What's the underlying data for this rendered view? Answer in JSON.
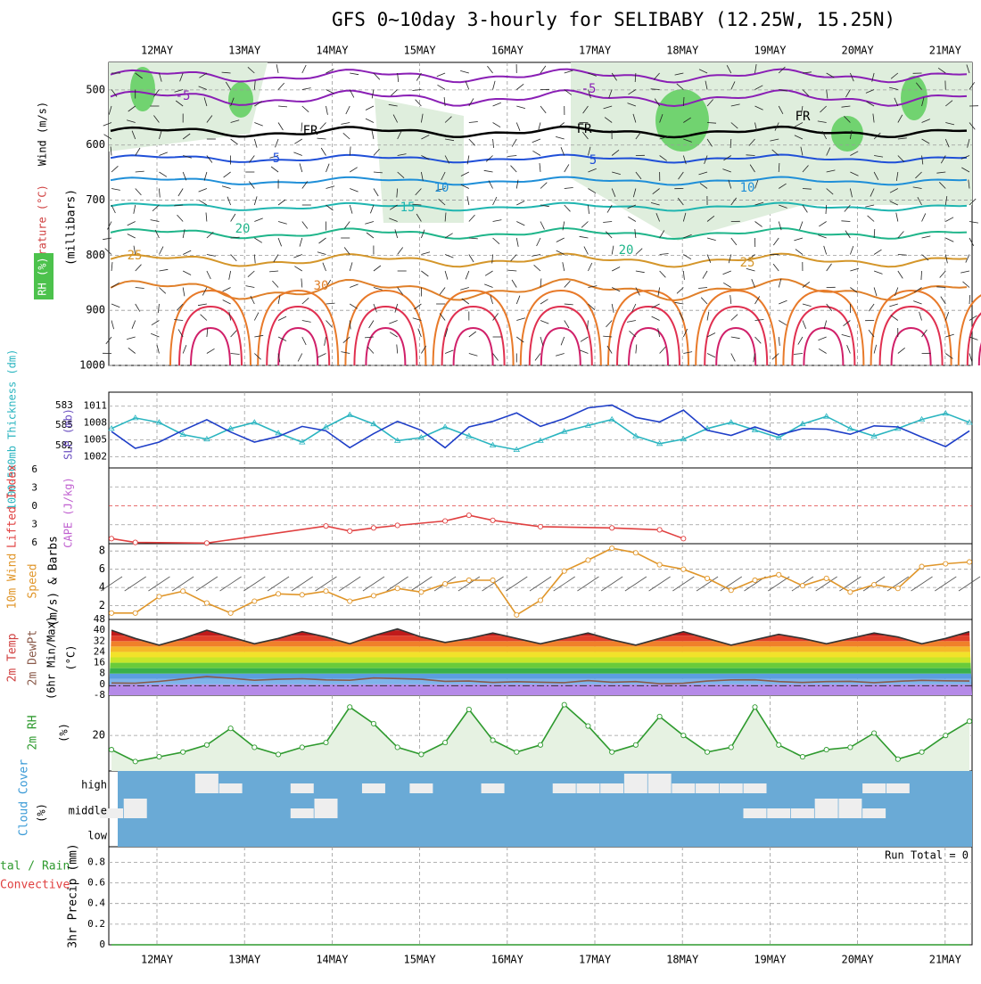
{
  "title": "GFS 0~10day 3-hourly for SELIBABY (12.25W, 15.25N)",
  "dates": [
    "12MAY",
    "13MAY",
    "14MAY",
    "15MAY",
    "16MAY",
    "17MAY",
    "18MAY",
    "19MAY",
    "20MAY",
    "21MAY"
  ],
  "colors": {
    "grid": "#9a9a9a",
    "thickness": "#2bb5c0",
    "slp": "#1f3fc8",
    "li": "#e04040",
    "wind": "#e0962a",
    "rh": "#2e9a2e",
    "cloud_bg": "#6aaad6",
    "cloud_fill": "#eeeeee"
  },
  "labels": {
    "wind": "Wind (m/s)",
    "temperature": "Temperature (°C)",
    "rh_pct": "RH (%)",
    "millibars": "(millibars)",
    "thickness": "1000-500mb Thickness (dm)",
    "slp": "SLP (mb)",
    "li": "Lifted Index",
    "cape": "CAPE (J/kg)",
    "wind10": "10m Wind",
    "speed": "Speed",
    "barbs": "(m/s) & Barbs",
    "temp2m": "2m Temp",
    "dewpt": "2m DewPt",
    "minmax": "(6hr Min/Max)",
    "degc": "(°C)",
    "rh2m": "2m RH",
    "pct": "(%)",
    "cloud": "Cloud Cover",
    "cloud_pct": "(%)",
    "precip_total": "tal / Rain",
    "precip_conv": "Convective",
    "precip_unit": "3hr Precip (mm)",
    "run_total": "Run Total = 0",
    "fr": "FR"
  },
  "chart_data": [
    {
      "type": "line",
      "panel": "upper-air",
      "ylabel": "Wind (m/s)",
      "y_ticks": [
        "500",
        "600",
        "700",
        "800",
        "900",
        "1000"
      ],
      "ylim": [
        1000,
        450
      ],
      "x": [
        "12MAY",
        "13MAY",
        "14MAY",
        "15MAY",
        "16MAY",
        "17MAY",
        "18MAY",
        "19MAY",
        "20MAY",
        "21MAY"
      ],
      "contour_labels": [
        "-5",
        "-5",
        "FR",
        "FR",
        "FR",
        "5",
        "5",
        "10",
        "10",
        "15",
        "20",
        "20",
        "25",
        "25",
        "30",
        "30",
        "30",
        "30"
      ],
      "series": [
        {
          "name": "-5",
          "values": [
            -5,
            -5,
            -5,
            -5,
            -5,
            -5,
            -5,
            -5,
            -5,
            -5
          ]
        },
        {
          "name": "FR",
          "values": [
            0,
            0,
            0,
            0,
            0,
            0,
            0,
            0,
            0,
            0
          ]
        },
        {
          "name": "5",
          "values": [
            5,
            5,
            5,
            5,
            5,
            5,
            5,
            5,
            5,
            5
          ]
        },
        {
          "name": "10",
          "values": [
            10,
            10,
            10,
            10,
            10,
            10,
            10,
            10,
            10,
            10
          ]
        },
        {
          "name": "20",
          "values": [
            20,
            20,
            20,
            20,
            20,
            20,
            20,
            20,
            20,
            20
          ]
        },
        {
          "name": "25",
          "values": [
            25,
            25,
            25,
            25,
            25,
            25,
            25,
            25,
            25,
            25
          ]
        },
        {
          "name": "30",
          "values": [
            30,
            30,
            30,
            30,
            30,
            30,
            30,
            30,
            30,
            30
          ]
        }
      ]
    },
    {
      "type": "line",
      "panel": "thickness-slp",
      "y_ticks_left": [
        "583",
        "585",
        "582"
      ],
      "y_ticks_right": [
        "1011",
        "1008",
        "1005",
        "1002"
      ],
      "series": [
        {
          "name": "1000-500mb Thickness (dm)",
          "values": [
            583.6,
            584.3,
            584.0,
            583.2,
            582.9,
            583.6,
            584.0,
            583.3,
            582.7,
            583.7,
            584.5,
            583.9,
            582.8,
            583.0,
            583.7,
            583.1,
            582.5,
            582.2,
            582.8,
            583.4,
            583.8,
            584.2,
            583.1,
            582.6,
            582.9,
            583.6,
            584.0,
            583.5,
            583.0,
            583.9,
            584.4,
            583.6,
            583.1,
            583.6,
            584.2,
            584.6,
            584.0
          ]
        },
        {
          "name": "SLP (mb)",
          "values": [
            1006.5,
            1003.5,
            1004.6,
            1006.7,
            1008.6,
            1006.4,
            1004.6,
            1005.6,
            1007.4,
            1006.6,
            1003.6,
            1006.1,
            1008.3,
            1006.7,
            1003.6,
            1007.3,
            1008.3,
            1009.8,
            1007.4,
            1008.8,
            1010.7,
            1011.2,
            1009.0,
            1008.2,
            1010.3,
            1006.7,
            1005.8,
            1007.3,
            1005.9,
            1007.0,
            1006.9,
            1006.0,
            1007.5,
            1007.3,
            1005.5,
            1003.8,
            1006.6
          ]
        }
      ]
    },
    {
      "type": "line",
      "panel": "lifted-index",
      "y_ticks": [
        "6",
        "3",
        "0",
        "3",
        "6"
      ],
      "series": [
        {
          "name": "Lifted Index",
          "values": [
            5.2,
            5.8,
            null,
            null,
            5.9,
            null,
            null,
            null,
            null,
            3.2,
            4.0,
            3.5,
            3.1,
            null,
            2.4,
            1.5,
            2.3,
            null,
            3.3,
            null,
            null,
            3.5,
            null,
            3.8,
            5.2,
            null,
            null,
            null,
            null,
            null,
            null,
            null,
            null,
            null,
            null,
            null,
            null
          ]
        }
      ]
    },
    {
      "type": "line",
      "panel": "10m-wind",
      "y_ticks": [
        "2",
        "4",
        "6",
        "8"
      ],
      "ylim": [
        0.5,
        8.8
      ],
      "series": [
        {
          "name": "Speed",
          "values": [
            1.2,
            1.2,
            3.0,
            3.6,
            2.3,
            1.2,
            2.5,
            3.3,
            3.2,
            3.6,
            2.5,
            3.1,
            3.9,
            3.5,
            4.4,
            4.8,
            4.8,
            1.0,
            2.6,
            5.8,
            7.0,
            8.3,
            7.8,
            6.5,
            6.0,
            5.0,
            3.7,
            4.8,
            5.4,
            4.2,
            5.0,
            3.5,
            4.3,
            3.9,
            6.3,
            6.6,
            6.8
          ]
        }
      ]
    },
    {
      "type": "area",
      "panel": "2m-temp",
      "y_ticks": [
        "-8",
        "0",
        "8",
        "16",
        "24",
        "32",
        "40",
        "48"
      ],
      "ylim": [
        -8,
        48
      ],
      "series": [
        {
          "name": "2m Temp",
          "values": [
            40,
            34,
            29,
            34,
            40,
            35,
            30,
            34,
            39,
            35,
            30,
            36,
            41,
            35,
            31,
            34,
            38,
            34,
            30,
            34,
            38,
            33,
            29,
            34,
            39,
            34,
            29,
            33,
            37,
            34,
            30,
            34,
            38,
            35,
            30,
            34,
            39
          ]
        },
        {
          "name": "2m DewPt",
          "values": [
            1.0,
            0.8,
            2.2,
            4.0,
            5.8,
            4.5,
            3.1,
            3.8,
            4.2,
            3.3,
            3.1,
            4.7,
            4.3,
            3.8,
            2.3,
            2.5,
            1.4,
            2.0,
            1.6,
            1.3,
            2.8,
            1.6,
            2.1,
            0.5,
            0.8,
            2.5,
            3.3,
            3.4,
            2.1,
            1.4,
            2.1,
            2.3,
            1.3,
            2.3,
            3.0,
            2.7,
            2.5
          ]
        }
      ]
    },
    {
      "type": "area",
      "panel": "2m-rh",
      "y_ticks": [
        "20"
      ],
      "series": [
        {
          "name": "2m RH",
          "values": [
            14,
            9,
            11,
            13,
            16,
            23,
            15,
            12,
            15,
            17,
            32,
            25,
            15,
            12,
            17,
            31,
            18,
            13,
            16,
            33,
            24,
            13,
            16,
            28,
            20,
            13,
            15,
            32,
            16,
            11,
            14,
            15,
            21,
            10,
            13,
            20,
            26
          ]
        }
      ]
    },
    {
      "type": "bar",
      "panel": "cloud-cover",
      "y_ticks": [
        "high",
        "middle",
        "low"
      ],
      "series": [
        {
          "name": "high",
          "values": [
            0,
            0,
            0,
            0,
            2,
            1,
            0,
            0,
            1,
            0,
            0,
            1,
            0,
            1,
            0,
            0,
            1,
            0,
            0,
            1,
            1,
            1,
            2,
            2,
            1,
            1,
            1,
            1,
            0,
            0,
            0,
            0,
            1,
            1,
            0,
            0,
            0
          ]
        },
        {
          "name": "middle",
          "values": [
            1,
            2,
            0,
            0,
            0,
            0,
            0,
            0,
            1,
            2,
            0,
            0,
            0,
            0,
            0,
            0,
            0,
            0,
            0,
            0,
            0,
            0,
            0,
            0,
            0,
            0,
            0,
            1,
            1,
            1,
            2,
            2,
            1,
            0,
            0,
            0,
            0
          ]
        },
        {
          "name": "low",
          "values": [
            0,
            0,
            0,
            0,
            0,
            0,
            0,
            0,
            0,
            0,
            0,
            0,
            0,
            0,
            0,
            0,
            0,
            0,
            0,
            0,
            0,
            0,
            0,
            0,
            0,
            0,
            0,
            0,
            0,
            0,
            0,
            0,
            0,
            0,
            0,
            0,
            0
          ]
        }
      ]
    },
    {
      "type": "line",
      "panel": "3hr-precip",
      "y_ticks": [
        "0",
        "0.2",
        "0.4",
        "0.6",
        "0.8"
      ],
      "ylim": [
        0,
        0.95
      ],
      "series": [
        {
          "name": "Total / Rain",
          "values": [
            0,
            0,
            0,
            0,
            0,
            0,
            0,
            0,
            0,
            0,
            0,
            0,
            0,
            0,
            0,
            0,
            0,
            0,
            0,
            0,
            0,
            0,
            0,
            0,
            0,
            0,
            0,
            0,
            0,
            0,
            0,
            0,
            0,
            0,
            0,
            0,
            0
          ]
        },
        {
          "name": "Convective",
          "values": [
            0,
            0,
            0,
            0,
            0,
            0,
            0,
            0,
            0,
            0,
            0,
            0,
            0,
            0,
            0,
            0,
            0,
            0,
            0,
            0,
            0,
            0,
            0,
            0,
            0,
            0,
            0,
            0,
            0,
            0,
            0,
            0,
            0,
            0,
            0,
            0,
            0
          ]
        }
      ]
    }
  ]
}
